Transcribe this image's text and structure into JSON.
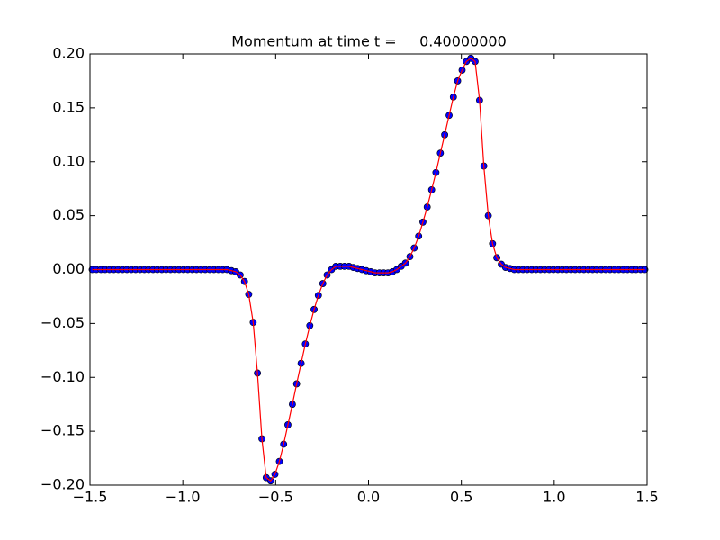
{
  "chart_data": {
    "type": "line",
    "title": "Momentum at time t =     0.40000000",
    "x": [
      -1.488,
      -1.465,
      -1.441,
      -1.418,
      -1.395,
      -1.371,
      -1.348,
      -1.324,
      -1.301,
      -1.277,
      -1.254,
      -1.23,
      -1.207,
      -1.184,
      -1.16,
      -1.137,
      -1.113,
      -1.09,
      -1.066,
      -1.043,
      -1.02,
      -0.996,
      -0.973,
      -0.949,
      -0.926,
      -0.902,
      -0.879,
      -0.855,
      -0.832,
      -0.809,
      -0.785,
      -0.762,
      -0.738,
      -0.715,
      -0.691,
      -0.668,
      -0.645,
      -0.621,
      -0.598,
      -0.574,
      -0.551,
      -0.527,
      -0.504,
      -0.48,
      -0.457,
      -0.434,
      -0.41,
      -0.387,
      -0.363,
      -0.34,
      -0.316,
      -0.293,
      -0.27,
      -0.246,
      -0.223,
      -0.199,
      -0.176,
      -0.152,
      -0.129,
      -0.105,
      -0.082,
      -0.059,
      -0.035,
      -0.012,
      0.012,
      0.035,
      0.059,
      0.082,
      0.105,
      0.129,
      0.152,
      0.176,
      0.199,
      0.223,
      0.246,
      0.27,
      0.293,
      0.316,
      0.34,
      0.363,
      0.387,
      0.41,
      0.434,
      0.457,
      0.48,
      0.504,
      0.527,
      0.551,
      0.574,
      0.598,
      0.621,
      0.645,
      0.668,
      0.691,
      0.715,
      0.738,
      0.762,
      0.785,
      0.809,
      0.832,
      0.855,
      0.879,
      0.902,
      0.926,
      0.949,
      0.973,
      0.996,
      1.02,
      1.043,
      1.066,
      1.09,
      1.113,
      1.137,
      1.16,
      1.184,
      1.207,
      1.23,
      1.254,
      1.277,
      1.301,
      1.324,
      1.348,
      1.371,
      1.395,
      1.418,
      1.441,
      1.465,
      1.488
    ],
    "series": [
      {
        "color": "#ff0000",
        "marker_color": "#0000ff",
        "values": [
          0,
          0,
          0,
          0,
          0,
          0,
          0,
          0,
          0,
          0,
          0,
          0,
          0,
          0,
          0,
          0,
          0,
          0,
          0,
          0,
          0,
          0,
          0,
          0,
          0,
          0,
          0,
          0,
          0,
          0,
          0,
          0,
          -0.001,
          -0.002,
          -0.005,
          -0.011,
          -0.023,
          -0.049,
          -0.096,
          -0.157,
          -0.193,
          -0.196,
          -0.19,
          -0.178,
          -0.162,
          -0.144,
          -0.125,
          -0.106,
          -0.087,
          -0.069,
          -0.052,
          -0.037,
          -0.024,
          -0.013,
          -0.005,
          0,
          0.003,
          0.003,
          0.003,
          0.003,
          0.002,
          0.001,
          0,
          -0.001,
          -0.002,
          -0.003,
          -0.003,
          -0.003,
          -0.003,
          -0.002,
          0,
          0.003,
          0.006,
          0.012,
          0.02,
          0.031,
          0.044,
          0.058,
          0.074,
          0.09,
          0.108,
          0.125,
          0.143,
          0.16,
          0.175,
          0.185,
          0.193,
          0.196,
          0.193,
          0.157,
          0.096,
          0.05,
          0.024,
          0.011,
          0.005,
          0.002,
          0.001,
          0,
          0,
          0,
          0,
          0,
          0,
          0,
          0,
          0,
          0,
          0,
          0,
          0,
          0,
          0,
          0,
          0,
          0,
          0,
          0,
          0,
          0,
          0,
          0,
          0,
          0,
          0,
          0,
          0,
          0,
          0
        ]
      }
    ],
    "xlim": [
      -1.5,
      1.5
    ],
    "xticks": [
      {
        "value": -1.5,
        "label": "−1.5"
      },
      {
        "value": -1.0,
        "label": "−1.0"
      },
      {
        "value": -0.5,
        "label": "−0.5"
      },
      {
        "value": 0,
        "label": "0.0"
      },
      0.5,
      {
        "value": 1.0,
        "label": "1.0"
      },
      1.5
    ],
    "ylim": [
      -0.2,
      0.2
    ],
    "yticks": [
      {
        "value": -0.2,
        "label": "−0.20"
      },
      {
        "value": -0.15,
        "label": "−0.15"
      },
      {
        "value": -0.1,
        "label": "−0.10"
      },
      {
        "value": -0.05,
        "label": "−0.05"
      },
      {
        "value": 0,
        "label": "0.00"
      },
      0.05,
      {
        "value": 0.1,
        "label": "0.10"
      },
      0.15,
      {
        "value": 0.2,
        "label": "0.20"
      }
    ],
    "grid": false
  }
}
